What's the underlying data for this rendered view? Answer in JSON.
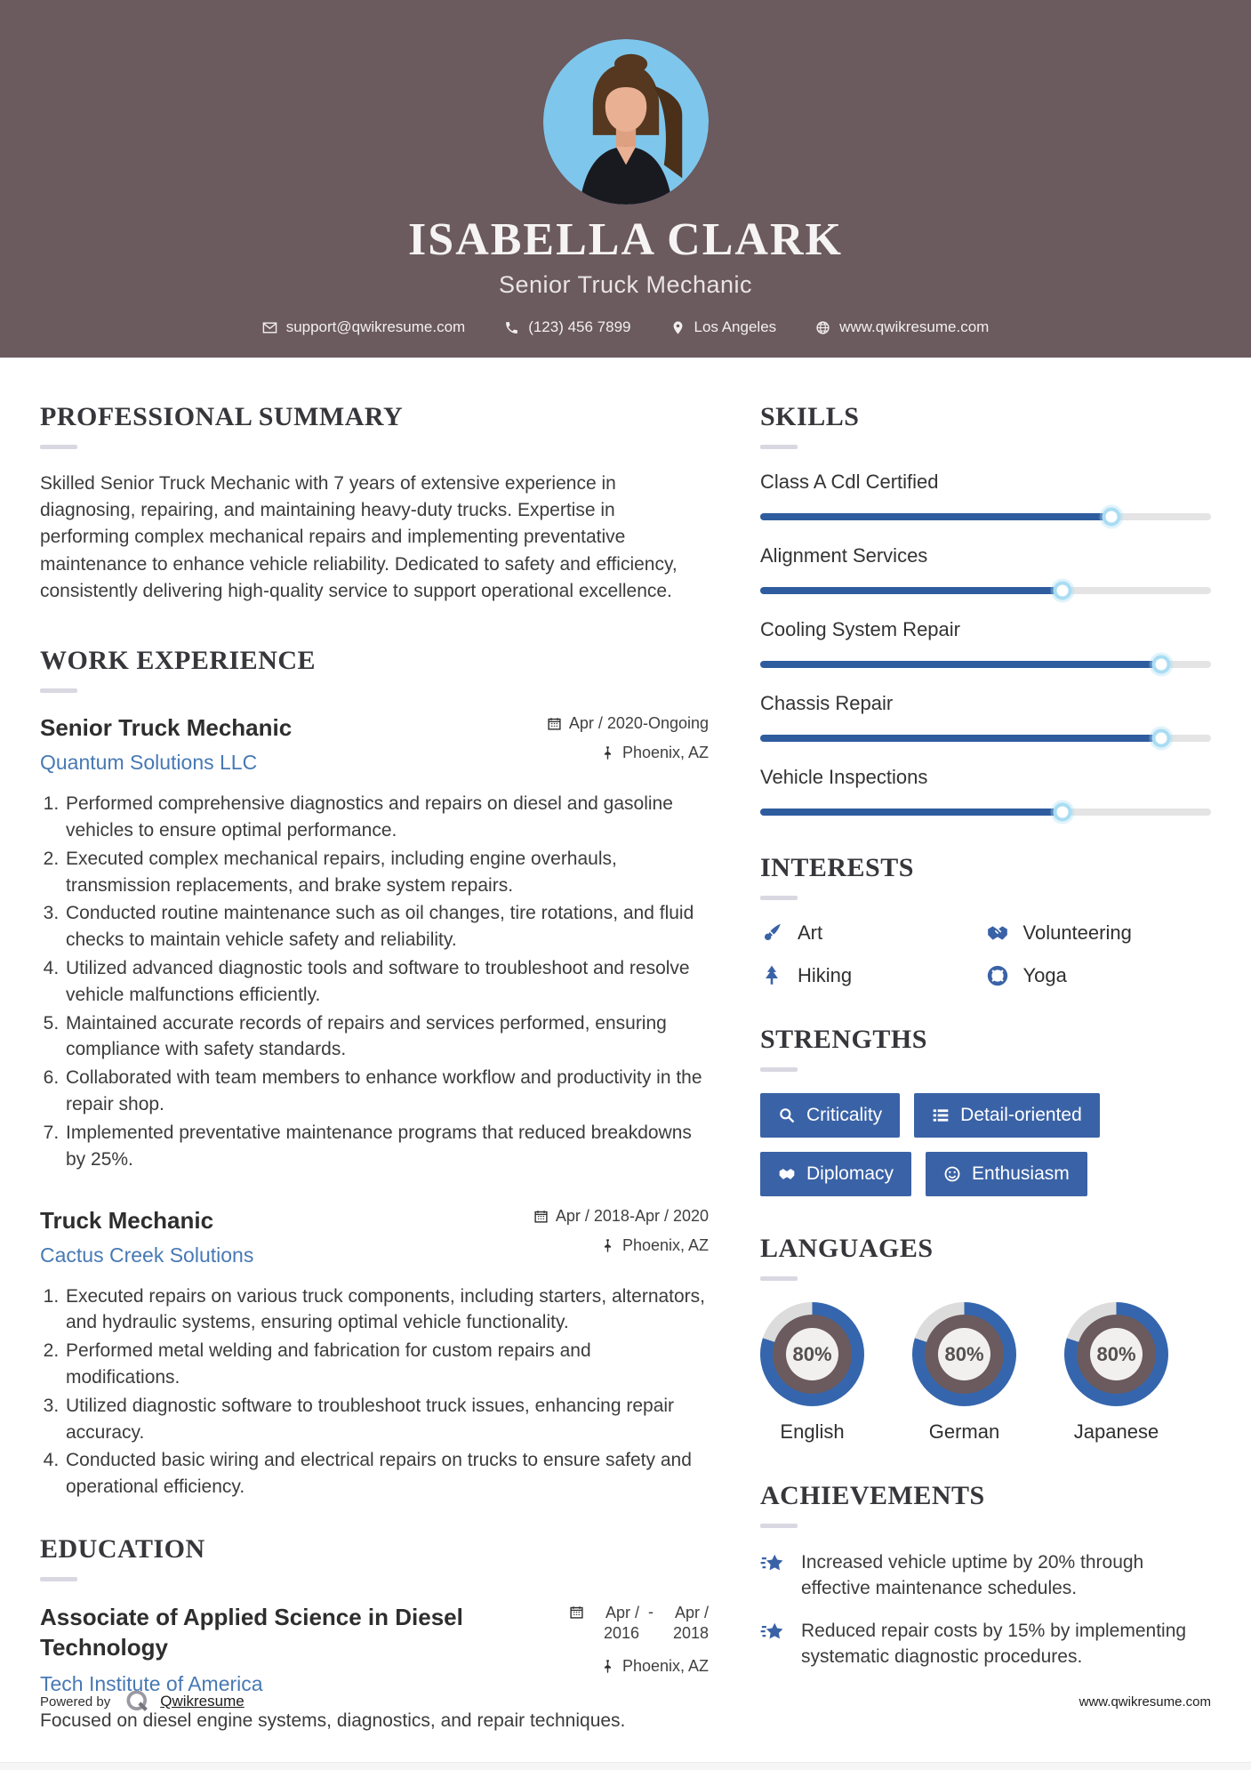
{
  "colors": {
    "header_bg": "#6b5a5e",
    "accent_blue": "#2e5c9e",
    "button_blue": "#3a62a6",
    "link_blue": "#4779b4",
    "donut_blue": "#3566ad",
    "donut_ring": "#6b5a5e",
    "donut_rest": "#dcdcdc",
    "track_gray": "#e4e4e4",
    "photo_bg": "#7fc6ec"
  },
  "header": {
    "name": "ISABELLA CLARK",
    "title": "Senior Truck Mechanic",
    "contact": [
      {
        "icon": "envelope-icon",
        "text": "support@qwikresume.com",
        "interactable": true,
        "name": "contact-email"
      },
      {
        "icon": "phone-icon",
        "text": "(123) 456 7899",
        "interactable": true,
        "name": "contact-phone"
      },
      {
        "icon": "location-pin-icon",
        "text": "Los Angeles",
        "interactable": false,
        "name": "contact-location"
      },
      {
        "icon": "globe-icon",
        "text": "www.qwikresume.com",
        "interactable": true,
        "name": "contact-website"
      }
    ]
  },
  "summary": {
    "heading": "PROFESSIONAL SUMMARY",
    "text": "Skilled Senior Truck Mechanic with 7 years of extensive experience in diagnosing, repairing, and maintaining heavy-duty trucks. Expertise in performing complex mechanical repairs and implementing preventative maintenance to enhance vehicle reliability. Dedicated to safety and efficiency, consistently delivering high-quality service to support operational excellence."
  },
  "experience": {
    "heading": "WORK EXPERIENCE",
    "jobs": [
      {
        "title": "Senior Truck Mechanic",
        "company": "Quantum Solutions LLC",
        "date": "Apr / 2020-Ongoing",
        "location": "Phoenix, AZ",
        "bullets": [
          "Performed comprehensive diagnostics and repairs on diesel and gasoline vehicles to ensure optimal performance.",
          "Executed complex mechanical repairs, including engine overhauls, transmission replacements, and brake system repairs.",
          "Conducted routine maintenance such as oil changes, tire rotations, and fluid checks to maintain vehicle safety and reliability.",
          "Utilized advanced diagnostic tools and software to troubleshoot and resolve vehicle malfunctions efficiently.",
          "Maintained accurate records of repairs and services performed, ensuring compliance with safety standards.",
          "Collaborated with team members to enhance workflow and productivity in the repair shop.",
          "Implemented preventative maintenance programs that reduced breakdowns by 25%."
        ]
      },
      {
        "title": "Truck Mechanic",
        "company": "Cactus Creek Solutions",
        "date": "Apr / 2018-Apr / 2020",
        "location": "Phoenix, AZ",
        "bullets": [
          "Executed repairs on various truck components, including starters, alternators, and hydraulic systems, ensuring optimal vehicle functionality.",
          "Performed metal welding and fabrication for custom repairs and modifications.",
          "Utilized diagnostic software to troubleshoot truck issues, enhancing repair accuracy.",
          "Conducted basic wiring and electrical repairs on trucks to ensure safety and operational efficiency."
        ]
      }
    ]
  },
  "education": {
    "heading": "EDUCATION",
    "degree": "Associate of Applied Science in Diesel Technology",
    "school": "Tech Institute of America",
    "date_start": "Apr / 2016",
    "date_sep": "-",
    "date_end": "Apr / 2018",
    "location": "Phoenix, AZ",
    "description": "Focused on diesel engine systems, diagnostics, and repair techniques."
  },
  "skills": {
    "heading": "SKILLS",
    "items": [
      {
        "label": "Class A Cdl Certified",
        "percent": 78
      },
      {
        "label": "Alignment Services",
        "percent": 67
      },
      {
        "label": "Cooling System Repair",
        "percent": 89
      },
      {
        "label": "Chassis Repair",
        "percent": 89
      },
      {
        "label": "Vehicle Inspections",
        "percent": 67
      }
    ]
  },
  "interests": {
    "heading": "INTERESTS",
    "items": [
      {
        "icon": "brush-icon",
        "label": "Art"
      },
      {
        "icon": "handshake-icon",
        "label": "Volunteering"
      },
      {
        "icon": "tree-icon",
        "label": "Hiking"
      },
      {
        "icon": "lifebuoy-icon",
        "label": "Yoga"
      }
    ]
  },
  "strengths": {
    "heading": "STRENGTHS",
    "items": [
      {
        "icon": "search-icon",
        "label": "Criticality"
      },
      {
        "icon": "list-icon",
        "label": "Detail-oriented"
      },
      {
        "icon": "handshake-icon",
        "label": "Diplomacy"
      },
      {
        "icon": "smiley-icon",
        "label": "Enthusiasm"
      }
    ]
  },
  "languages": {
    "heading": "LANGUAGES",
    "items": [
      {
        "label": "English",
        "percent": 80,
        "percent_label": "80%"
      },
      {
        "label": "German",
        "percent": 80,
        "percent_label": "80%"
      },
      {
        "label": "Japanese",
        "percent": 80,
        "percent_label": "80%"
      }
    ]
  },
  "achievements": {
    "heading": "ACHIEVEMENTS",
    "items": [
      {
        "icon": "shooting-star-icon",
        "text": "Increased vehicle uptime by 20% through effective maintenance schedules."
      },
      {
        "icon": "shooting-star-icon",
        "text": "Reduced repair costs by 15% by implementing systematic diagnostic procedures."
      }
    ]
  },
  "footer": {
    "powered_by": "Powered by",
    "brand": "Qwikresume",
    "site": "www.qwikresume.com"
  }
}
